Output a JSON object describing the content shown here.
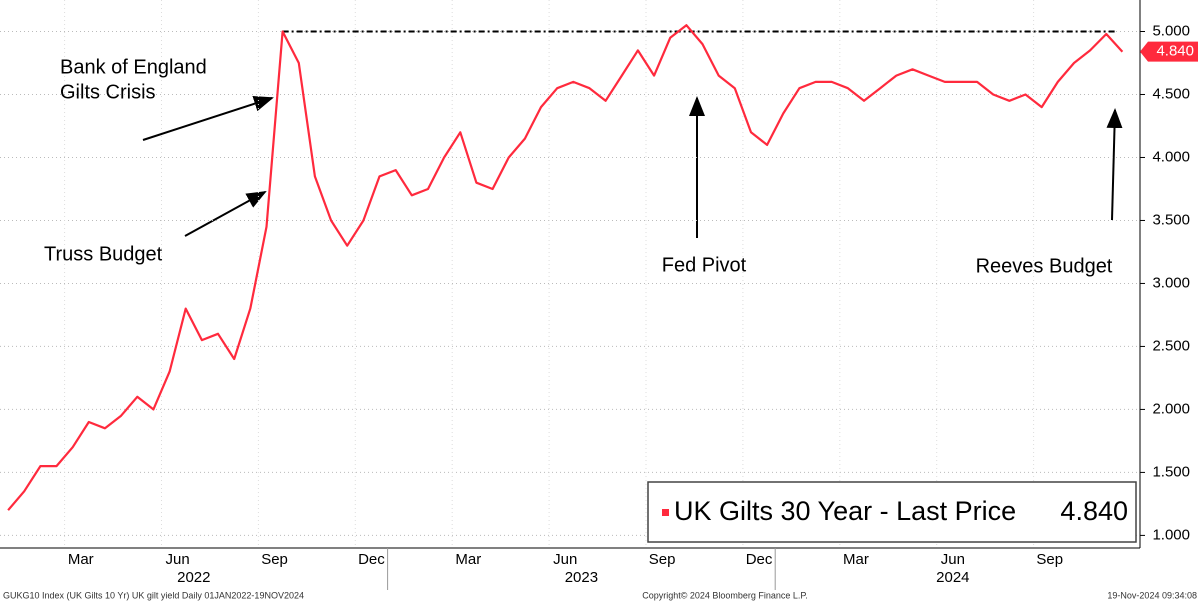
{
  "chart_data": {
    "type": "line",
    "categories": [
      null,
      null,
      null,
      null,
      "Mar",
      null,
      null,
      null,
      null,
      null,
      "Jun",
      null,
      null,
      null,
      null,
      null,
      "Sep",
      null,
      null,
      null,
      null,
      null,
      "Dec",
      null,
      null,
      null,
      null,
      null,
      "Mar",
      null,
      null,
      null,
      null,
      null,
      "Jun",
      null,
      null,
      null,
      null,
      null,
      "Sep",
      null,
      null,
      null,
      null,
      null,
      "Dec",
      null,
      null,
      null,
      null,
      null,
      "Mar",
      null,
      null,
      null,
      null,
      null,
      "Jun",
      null,
      null,
      null,
      null,
      null,
      "Sep",
      null,
      null,
      null,
      null,
      null
    ],
    "years": [
      "2022",
      "2023",
      "2024"
    ],
    "series": [
      {
        "name": "UK Gilts 30 Year - Last Price",
        "color": "#ff2a3d",
        "values": [
          1.2,
          1.35,
          1.55,
          1.55,
          1.7,
          1.9,
          1.85,
          1.95,
          2.1,
          2.0,
          2.3,
          2.8,
          2.55,
          2.6,
          2.4,
          2.8,
          3.45,
          5.0,
          4.75,
          3.85,
          3.5,
          3.3,
          3.5,
          3.85,
          3.9,
          3.7,
          3.75,
          4.0,
          4.2,
          3.8,
          3.75,
          4.0,
          4.15,
          4.4,
          4.55,
          4.6,
          4.55,
          4.45,
          4.65,
          4.85,
          4.65,
          4.95,
          5.05,
          4.9,
          4.65,
          4.55,
          4.2,
          4.1,
          4.35,
          4.55,
          4.6,
          4.6,
          4.55,
          4.45,
          4.55,
          4.65,
          4.7,
          4.65,
          4.6,
          4.6,
          4.6,
          4.5,
          4.45,
          4.5,
          4.4,
          4.6,
          4.75,
          4.85,
          4.98,
          4.84
        ]
      }
    ],
    "last_price_label": "4.840",
    "reference_line": 5.0,
    "ylim": [
      0.9,
      5.25
    ],
    "yticks": [
      {
        "value": 1.0,
        "label": "1.000"
      },
      {
        "value": 1.5,
        "label": "1.500"
      },
      {
        "value": 2.0,
        "label": "2.000"
      },
      {
        "value": 2.5,
        "label": "2.500"
      },
      {
        "value": 3.0,
        "label": "3.000"
      },
      {
        "value": 3.5,
        "label": "3.500"
      },
      {
        "value": 4.0,
        "label": "4.000"
      },
      {
        "value": 4.5,
        "label": "4.500"
      },
      {
        "value": 5.0,
        "label": "5.000"
      }
    ],
    "grid": true,
    "annotations": [
      [
        "Bank of England",
        "Gilts Crisis"
      ],
      [
        "Truss Budget"
      ],
      [
        "Fed Pivot"
      ],
      [
        "Reeves Budget"
      ]
    ],
    "footer": [
      "GUKG10 Index (UK Gilts 10 Yr) UK gilt yield  Daily 01JAN2022-19NOV2024",
      "Copyright© 2024 Bloomberg Finance L.P.",
      "19-Nov-2024 09:34:08"
    ]
  }
}
